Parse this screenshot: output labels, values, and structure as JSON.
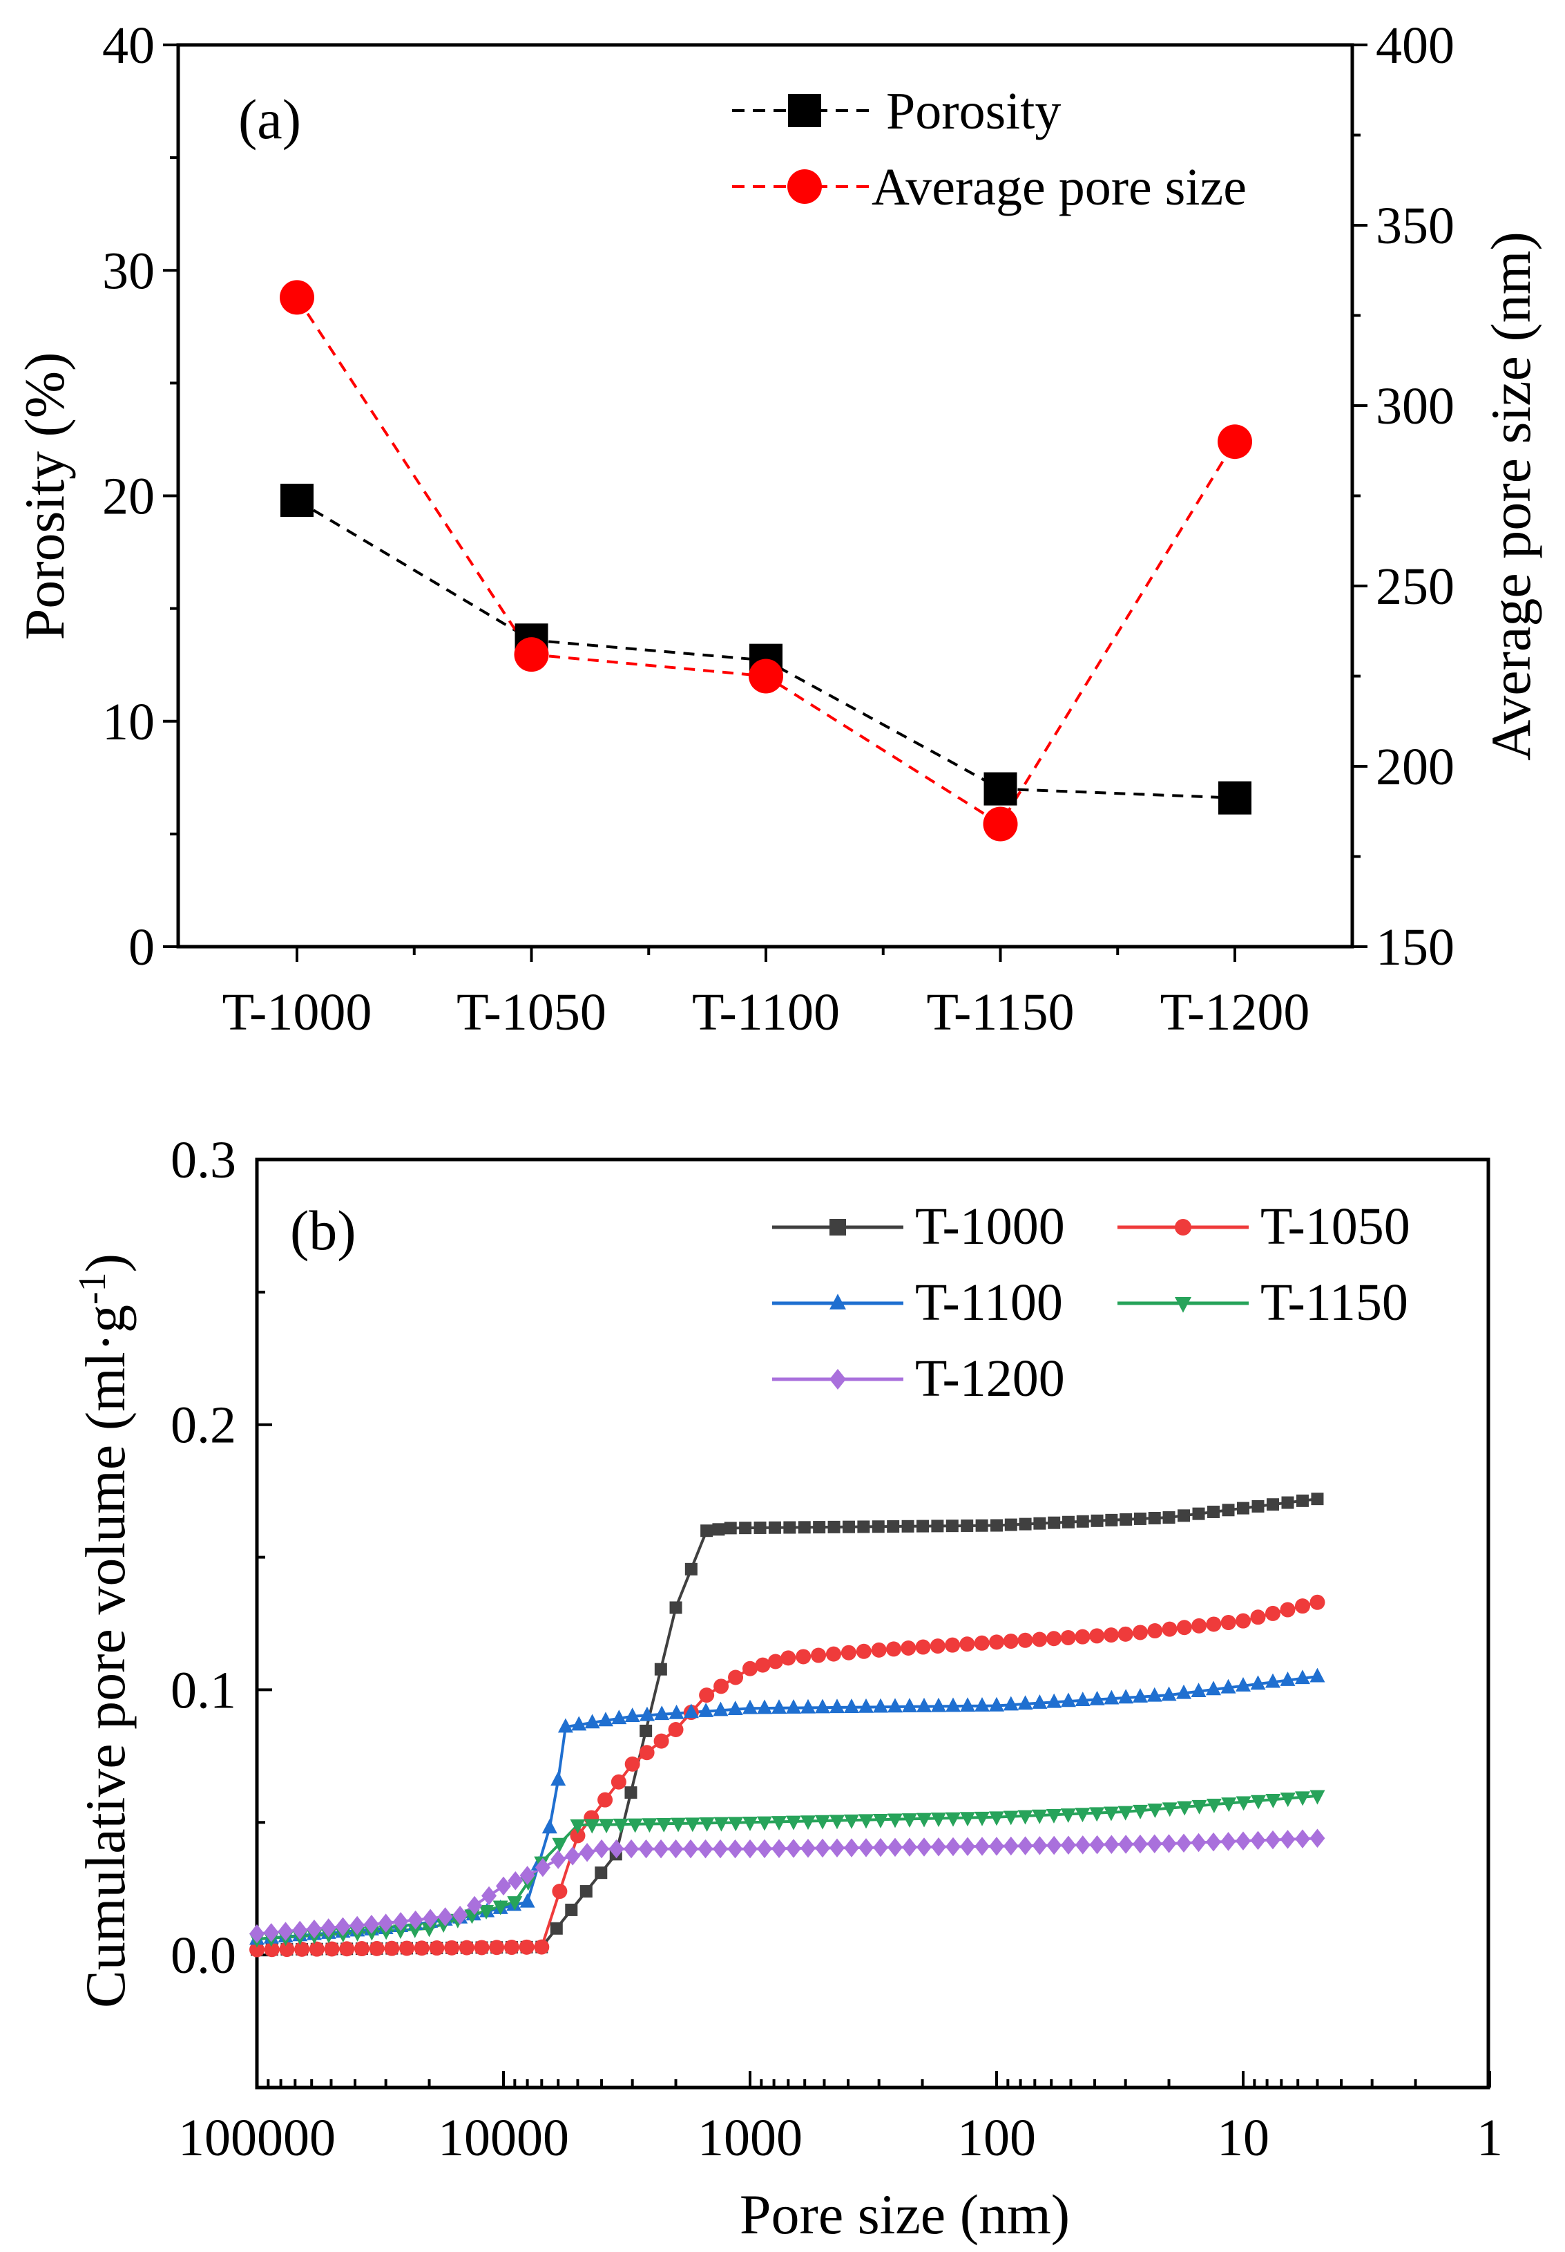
{
  "chart_data": [
    {
      "type": "line",
      "panel_label": "(a)",
      "categories": [
        "T-1000",
        "T-1050",
        "T-1100",
        "T-1150",
        "T-1200"
      ],
      "ylabel": "Porosity (%)",
      "ylim": [
        0,
        40
      ],
      "yticks": [
        "0",
        "10",
        "20",
        "30",
        "40"
      ],
      "y2label": "Average pore size (nm)",
      "y2lim": [
        150,
        400
      ],
      "y2ticks": [
        "150",
        "200",
        "250",
        "300",
        "350",
        "400"
      ],
      "series": [
        {
          "name": "Porosity",
          "axis": "left",
          "marker": "square",
          "color": "#000000",
          "values": [
            19.8,
            13.6,
            12.7,
            7.0,
            6.6
          ]
        },
        {
          "name": "Average pore size",
          "axis": "right",
          "marker": "circle",
          "color": "#ff0000",
          "values": [
            330,
            231,
            225,
            184,
            290
          ]
        }
      ],
      "legend_position": "top-right"
    },
    {
      "type": "line",
      "panel_label": "(b)",
      "xlabel": "Pore size (nm)",
      "xscale": "log",
      "xreversed": true,
      "xticks": [
        "100000",
        "10000",
        "1000",
        "100",
        "10",
        "1"
      ],
      "ylabel_main": "Cumulative pore volume (ml·g",
      "ylabel_sup": "-1",
      "ylabel_close": ")",
      "ylim": [
        -0.05,
        0.3
      ],
      "yticks": [
        "0.0",
        "0.1",
        "0.2",
        "0.3"
      ],
      "legend_position": "top-right",
      "series": [
        {
          "name": "T-1000",
          "color": "#404040",
          "marker": "square",
          "points": [
            [
              100000,
              0.002
            ],
            [
              7000,
              0.003
            ],
            [
              3500,
              0.038
            ],
            [
              2000,
              0.131
            ],
            [
              1500,
              0.16
            ],
            [
              1200,
              0.161
            ],
            [
              100,
              0.162
            ],
            [
              20,
              0.165
            ],
            [
              5,
              0.172
            ]
          ]
        },
        {
          "name": "T-1050",
          "color": "#ef3b3b",
          "marker": "circle",
          "points": [
            [
              100000,
              0.002
            ],
            [
              7000,
              0.003
            ],
            [
              5000,
              0.045
            ],
            [
              3000,
              0.072
            ],
            [
              2000,
              0.085
            ],
            [
              1500,
              0.098
            ],
            [
              1000,
              0.108
            ],
            [
              700,
              0.112
            ],
            [
              300,
              0.115
            ],
            [
              100,
              0.118
            ],
            [
              30,
              0.121
            ],
            [
              10,
              0.126
            ],
            [
              5,
              0.133
            ]
          ]
        },
        {
          "name": "T-1100",
          "color": "#1f6fd0",
          "marker": "triangle-up",
          "points": [
            [
              100000,
              0.006
            ],
            [
              30000,
              0.01
            ],
            [
              15000,
              0.014
            ],
            [
              8000,
              0.02
            ],
            [
              6500,
              0.048
            ],
            [
              6000,
              0.066
            ],
            [
              5600,
              0.086
            ],
            [
              3000,
              0.09
            ],
            [
              1000,
              0.093
            ],
            [
              100,
              0.094
            ],
            [
              20,
              0.098
            ],
            [
              5,
              0.105
            ]
          ]
        },
        {
          "name": "T-1150",
          "color": "#27a35a",
          "marker": "triangle-down",
          "points": [
            [
              100000,
              0.006
            ],
            [
              20000,
              0.01
            ],
            [
              9000,
              0.02
            ],
            [
              7000,
              0.035
            ],
            [
              5000,
              0.049
            ],
            [
              1000,
              0.05
            ],
            [
              100,
              0.052
            ],
            [
              30,
              0.054
            ],
            [
              5,
              0.06
            ]
          ]
        },
        {
          "name": "T-1200",
          "color": "#a970dc",
          "marker": "diamond",
          "points": [
            [
              100000,
              0.008
            ],
            [
              30000,
              0.012
            ],
            [
              15000,
              0.015
            ],
            [
              10000,
              0.026
            ],
            [
              8000,
              0.03
            ],
            [
              6000,
              0.036
            ],
            [
              4000,
              0.04
            ],
            [
              1000,
              0.04
            ],
            [
              100,
              0.041
            ],
            [
              20,
              0.042
            ],
            [
              5,
              0.044
            ]
          ]
        }
      ]
    }
  ]
}
